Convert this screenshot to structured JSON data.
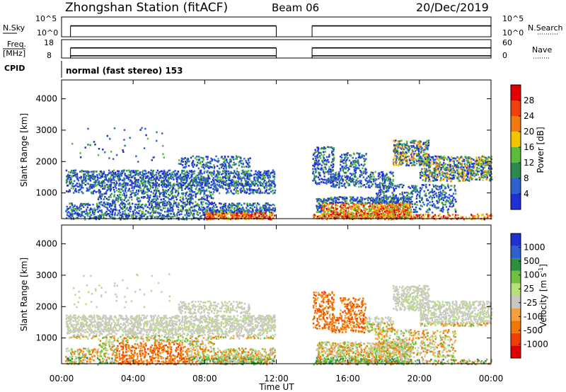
{
  "header": {
    "station": "Zhongshan Station (fitACF)",
    "beam": "Beam 06",
    "date": "20/Dec/2019"
  },
  "colors": {
    "data_line": "#000000",
    "power_scale": [
      "#1f2fd0",
      "#3060d0",
      "#2a8a50",
      "#5cba3c",
      "#f2c400",
      "#f07a10",
      "#f04010",
      "#e00000"
    ],
    "velocity_scale": [
      "#e00000",
      "#f04000",
      "#f07800",
      "#f4a040",
      "#c8c8c0",
      "#b8e07a",
      "#70c040",
      "#2a9040",
      "#3060d0",
      "#1f2fd0"
    ]
  },
  "chart_data": [
    {
      "id": "nsky_nsearch",
      "type": "line",
      "left_label": "N.Sky",
      "right_label": "N.Search",
      "yticks_left": [
        "10^5",
        "10^0"
      ],
      "yticks_right": [
        "10^5",
        "10^0"
      ],
      "x_range_hours": [
        0,
        24
      ],
      "series": [
        {
          "segments": [
            [
              0.5,
              12.0
            ],
            [
              14.0,
              24.0
            ]
          ],
          "level": 0.55
        }
      ]
    },
    {
      "id": "freq_nave",
      "type": "line",
      "left_label_lines": [
        "Freq.",
        "[MHz]"
      ],
      "right_label": "Nave",
      "yticks_left": [
        "18",
        "8"
      ],
      "yticks_right": [
        "60",
        "0"
      ],
      "x_range_hours": [
        0,
        24
      ],
      "series": [
        {
          "segments": [
            [
              0.5,
              12.0
            ],
            [
              14.0,
              24.0
            ]
          ],
          "level": 0.12
        },
        {
          "segments": [
            [
              0.5,
              12.0
            ],
            [
              14.0,
              24.0
            ]
          ],
          "level": 0.55
        }
      ]
    },
    {
      "id": "cpid",
      "type": "table",
      "label": "CPID",
      "text": "normal (fast stereo) 153"
    },
    {
      "id": "power",
      "type": "heatmap",
      "ylabel": "Slant Range [km]",
      "yticks": [
        "4000",
        "3000",
        "2000",
        "1000"
      ],
      "ylim": [
        180,
        4600
      ],
      "x_range_hours": [
        0,
        24
      ],
      "colorbar_label": "Power [dB]",
      "colorbar_ticks": [
        "28",
        "24",
        "20",
        "16",
        "12",
        "8",
        "4"
      ]
    },
    {
      "id": "velocity",
      "type": "heatmap",
      "ylabel": "Slant Range [km]",
      "yticks": [
        "4000",
        "3000",
        "2000",
        "1000"
      ],
      "ylim": [
        180,
        4600
      ],
      "x_range_hours": [
        0,
        24
      ],
      "colorbar_label": "Velocity [m s",
      "colorbar_label_sup": "-1",
      "colorbar_ticks": [
        "1000",
        "500",
        "100",
        "25",
        "-25",
        "-100",
        "-500",
        "-1000"
      ]
    }
  ],
  "x_axis": {
    "ticks": [
      "00:00",
      "04:00",
      "08:00",
      "12:00",
      "16:00",
      "20:00",
      "00:00"
    ],
    "label": "Time UT"
  }
}
